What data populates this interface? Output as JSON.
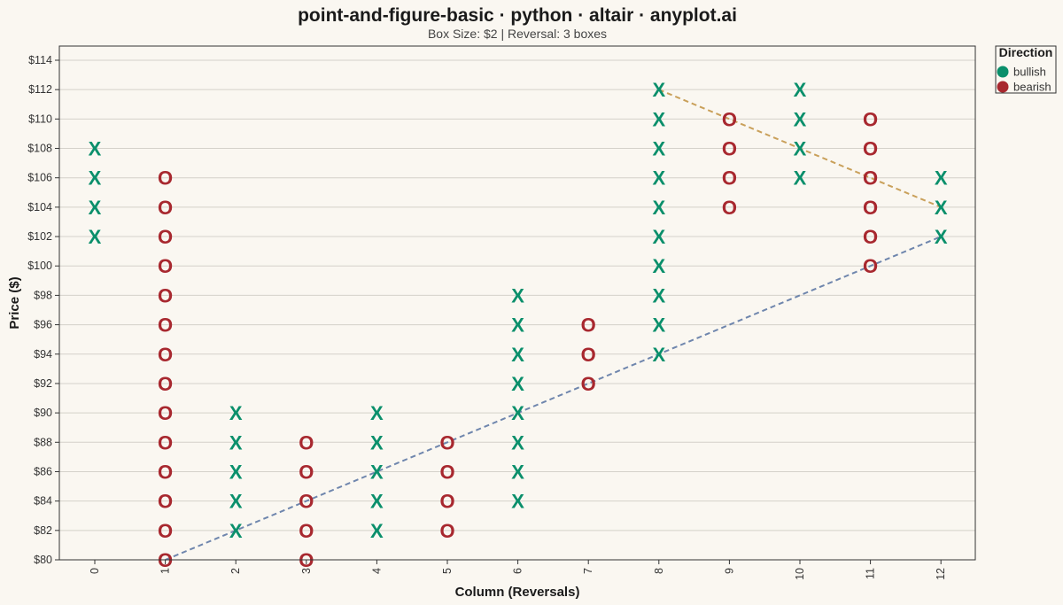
{
  "chart_data": {
    "type": "scatter",
    "chart_kind": "point-and-figure",
    "title": "point-and-figure-basic · python · altair · anyplot.ai",
    "subtitle": "Box Size: $2 | Reversal: 3 boxes",
    "xlabel": "Column (Reversals)",
    "ylabel": "Price ($)",
    "xlim": [
      0,
      12
    ],
    "ylim": [
      80,
      114
    ],
    "x_ticks": [
      0,
      1,
      2,
      3,
      4,
      5,
      6,
      7,
      8,
      9,
      10,
      11,
      12
    ],
    "y_ticks": [
      80,
      82,
      84,
      86,
      88,
      90,
      92,
      94,
      96,
      98,
      100,
      102,
      104,
      106,
      108,
      110,
      112,
      114
    ],
    "y_tick_prefix": "$",
    "grid": "horizontal",
    "legend": {
      "title": "Direction",
      "position": "top-right",
      "entries": [
        {
          "label": "bullish",
          "color": "#0a8f6b"
        },
        {
          "label": "bearish",
          "color": "#a8282f"
        }
      ]
    },
    "symbols": {
      "bullish": "X",
      "bearish": "O"
    },
    "columns": [
      {
        "x": 0,
        "direction": "bullish",
        "from": 102,
        "to": 108
      },
      {
        "x": 1,
        "direction": "bearish",
        "from": 80,
        "to": 106
      },
      {
        "x": 2,
        "direction": "bullish",
        "from": 82,
        "to": 90
      },
      {
        "x": 3,
        "direction": "bearish",
        "from": 80,
        "to": 88
      },
      {
        "x": 4,
        "direction": "bullish",
        "from": 82,
        "to": 90
      },
      {
        "x": 5,
        "direction": "bearish",
        "from": 82,
        "to": 88
      },
      {
        "x": 6,
        "direction": "bullish",
        "from": 84,
        "to": 98
      },
      {
        "x": 7,
        "direction": "bearish",
        "from": 92,
        "to": 96
      },
      {
        "x": 8,
        "direction": "bullish",
        "from": 94,
        "to": 112
      },
      {
        "x": 9,
        "direction": "bearish",
        "from": 104,
        "to": 110
      },
      {
        "x": 10,
        "direction": "bullish",
        "from": 106,
        "to": 112
      },
      {
        "x": 11,
        "direction": "bearish",
        "from": 100,
        "to": 110
      },
      {
        "x": 12,
        "direction": "bullish",
        "from": 102,
        "to": 106
      }
    ],
    "trendlines": [
      {
        "kind": "support",
        "color": "#6f86ad",
        "points": [
          [
            1,
            80
          ],
          [
            12,
            102
          ]
        ]
      },
      {
        "kind": "resistance",
        "color": "#c9a05a",
        "points": [
          [
            8,
            112
          ],
          [
            12,
            104
          ]
        ]
      }
    ]
  }
}
